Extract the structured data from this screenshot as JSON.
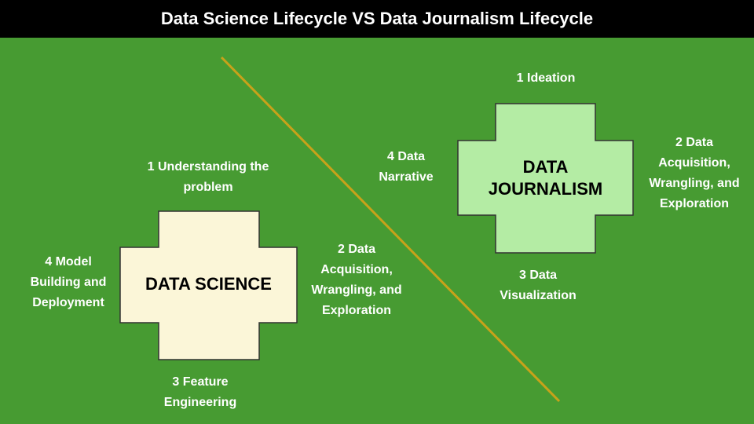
{
  "title": "Data Science Lifecycle VS Data Journalism Lifecycle",
  "colors": {
    "background": "#479b32",
    "header": "#000000",
    "divider": "#c8a21a",
    "data_science_fill": "#fbf6d8",
    "data_journalism_fill": "#b4eca4",
    "shape_stroke": "#333333"
  },
  "data_science": {
    "center": "DATA SCIENCE",
    "top": "1 Understanding the\nproblem",
    "right": "2 Data\nAcquisition,\nWrangling, and\nExploration",
    "bottom": "3 Feature\nEngineering",
    "left": "4 Model\nBuilding and\nDeployment"
  },
  "data_journalism": {
    "center": "DATA\nJOURNALISM",
    "top": "1 Ideation",
    "right": "2 Data\nAcquisition,\nWrangling, and\nExploration",
    "bottom": "3 Data\nVisualization",
    "left": "4 Data\nNarrative"
  }
}
